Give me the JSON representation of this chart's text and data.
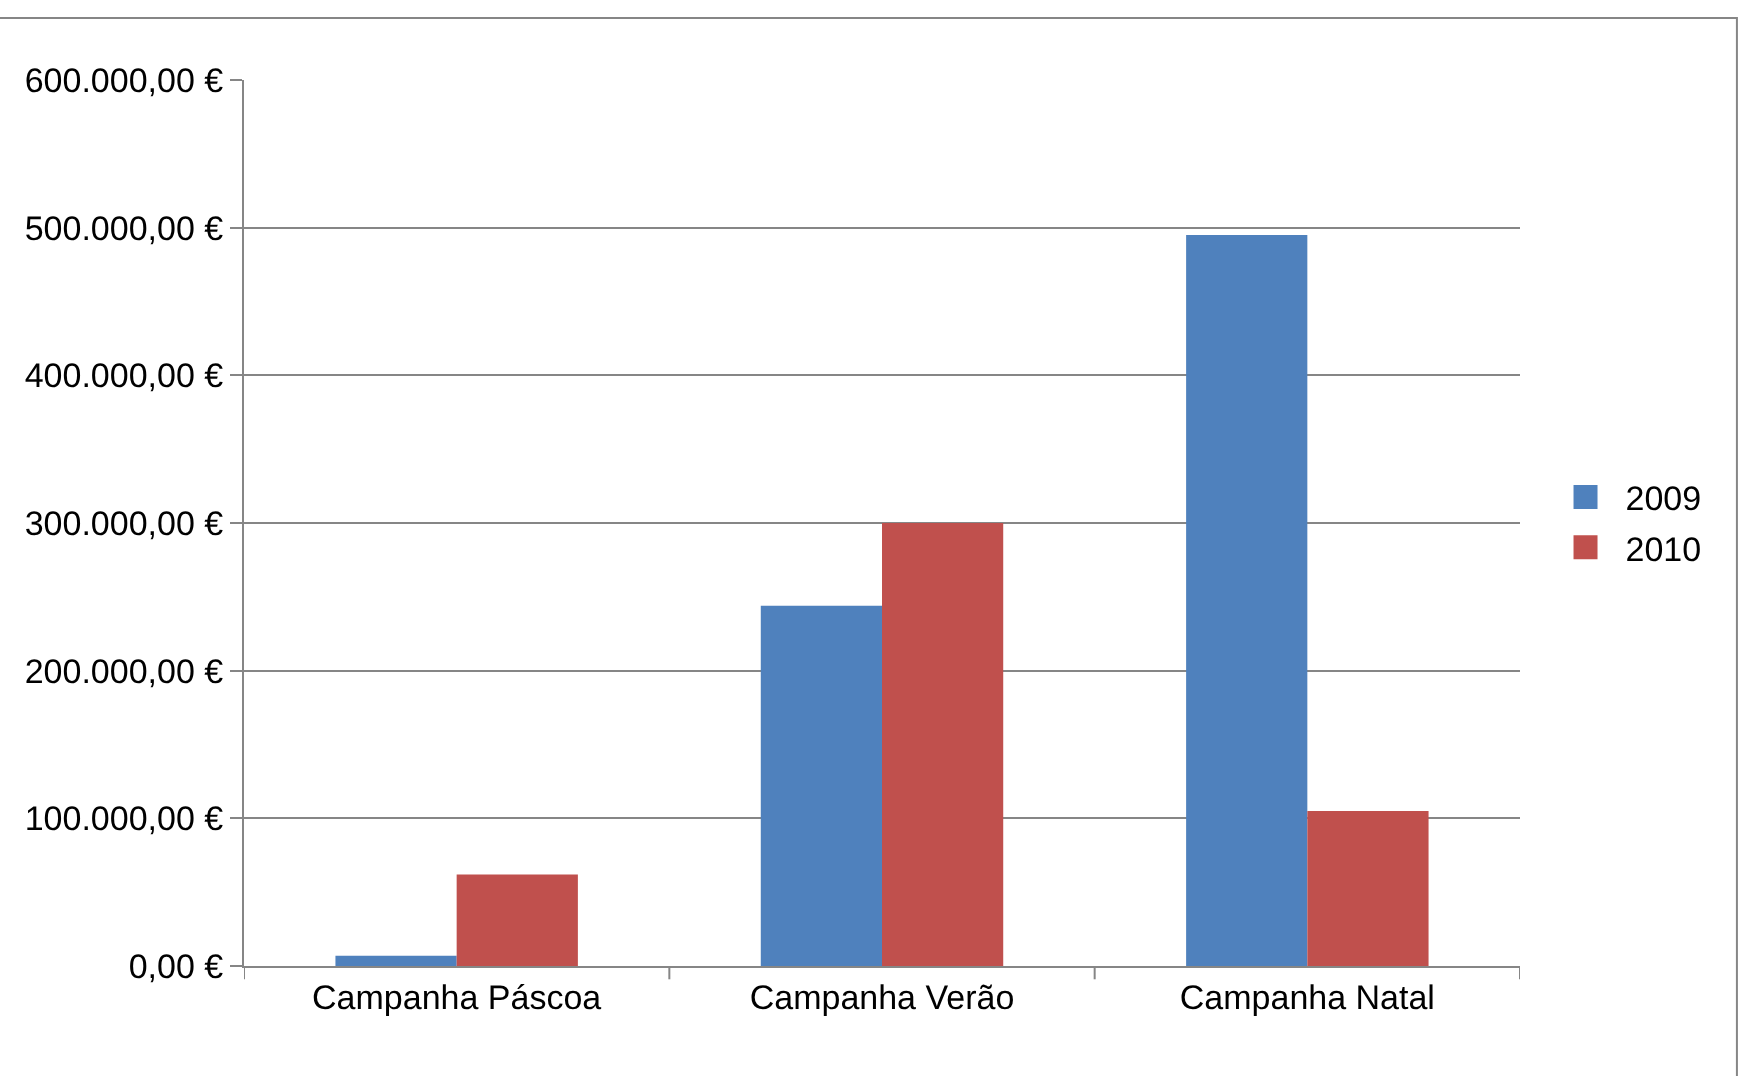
{
  "chart_data": {
    "type": "bar",
    "categories": [
      "Campanha Páscoa",
      "Campanha Verão",
      "Campanha Natal"
    ],
    "series": [
      {
        "name": "2009",
        "color": "#4f81bd",
        "values": [
          7000,
          244000,
          495000
        ]
      },
      {
        "name": "2010",
        "color": "#c0504d",
        "values": [
          62000,
          300000,
          105000
        ]
      }
    ],
    "ylim": [
      0,
      600000
    ],
    "yticks": [
      {
        "value": 0,
        "label": "0,00 €"
      },
      {
        "value": 100000,
        "label": "100.000,00 €"
      },
      {
        "value": 200000,
        "label": "200.000,00 €"
      },
      {
        "value": 300000,
        "label": "300.000,00 €"
      },
      {
        "value": 400000,
        "label": "400.000,00 €"
      },
      {
        "value": 500000,
        "label": "500.000,00 €"
      },
      {
        "value": 600000,
        "label": "600.000,00 €"
      }
    ],
    "grid": "y",
    "legend": "right"
  }
}
